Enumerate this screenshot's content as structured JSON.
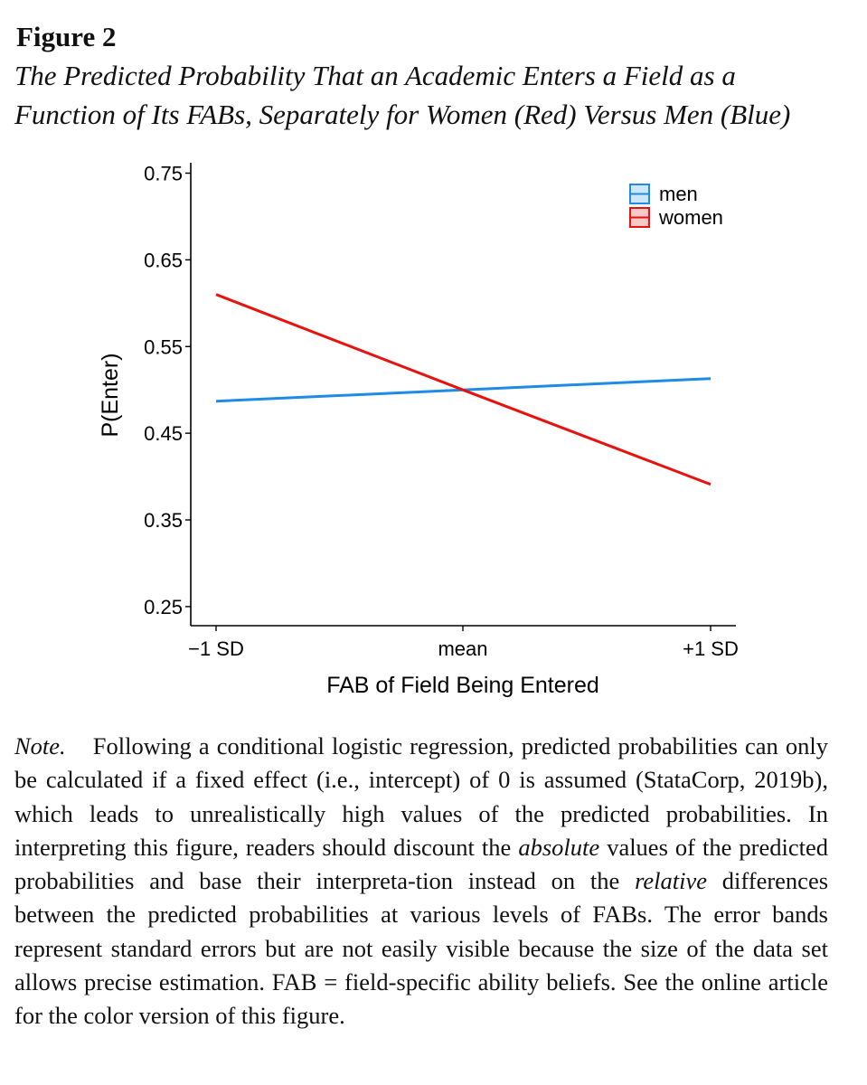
{
  "figure": {
    "label": "Figure 2",
    "caption_line1": "The Predicted Probability That an Academic Enters a Field as a",
    "caption_line2": "Function of Its FABs, Separately for Women (Red) Versus Men (Blue)"
  },
  "chart_data": {
    "type": "line",
    "title": "",
    "xlabel": "FAB of Field Being Entered",
    "ylabel": "P(Enter)",
    "categories": [
      "−1 SD",
      "mean",
      "+1 SD"
    ],
    "yticks": [
      0.25,
      0.35,
      0.45,
      0.55,
      0.65,
      0.75
    ],
    "ytick_labels": [
      "0.25",
      "0.35",
      "0.45",
      "0.55",
      "0.65",
      "0.75"
    ],
    "ylim": [
      0.228,
      0.762
    ],
    "grid": false,
    "legend_position": "top-right",
    "series": [
      {
        "name": "men",
        "color": "#1e8ce6",
        "fill": "#cfe6f8",
        "values": [
          0.487,
          0.5,
          0.513
        ]
      },
      {
        "name": "women",
        "color": "#e8110c",
        "fill": "#f8c9c6",
        "values": [
          0.61,
          0.5,
          0.391
        ]
      }
    ]
  },
  "note": {
    "lead": "Note.",
    "part1": "Following a conditional logistic regression, predicted probabilities can only be calculated if a fixed effect (i.e., intercept) of 0 is assumed (StataCorp, 2019b), which leads to unrealistically high values of the predicted probabilities. In interpreting this figure, readers should discount the",
    "em1": "absolute",
    "part2": "values of the predicted probabilities and base their interpreta-tion instead on the",
    "em2": "relative",
    "part3": "differences between the predicted probabilities at various levels of FABs. The error bands represent standard errors but are not easily visible because the size of the data set allows precise estimation. FAB = field-specific ability beliefs. See the online article for the color version of this figure."
  }
}
